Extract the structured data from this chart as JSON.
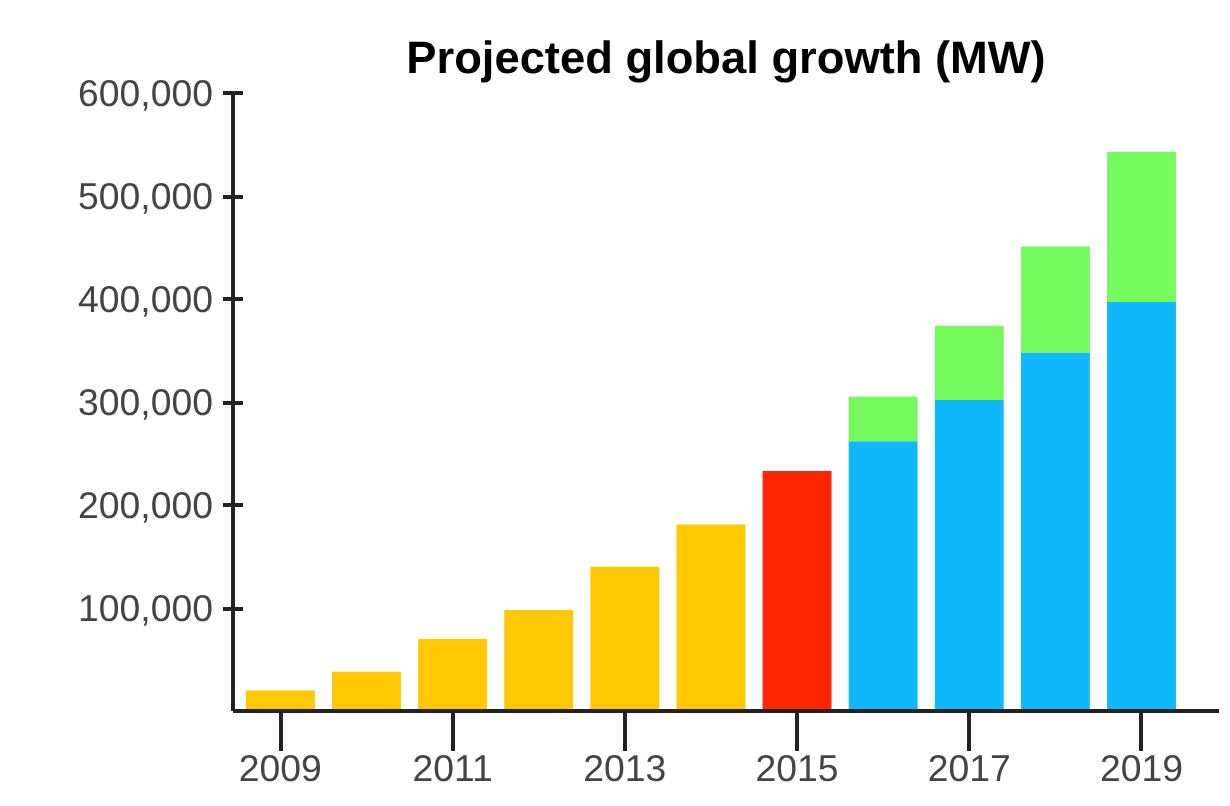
{
  "chart_data": {
    "type": "bar",
    "title": "Projected global growth (MW)",
    "categories": [
      "2009",
      null,
      "2011",
      null,
      "2013",
      null,
      "2015",
      null,
      "2017",
      null,
      "2019"
    ],
    "stacked": true,
    "series": [
      {
        "colors": [
          "#ffc800",
          "#ffc800",
          "#ffc800",
          "#ffc800",
          "#ffc800",
          "#ffc800",
          "#ff2600",
          "#10b8fc",
          "#10b8fc",
          "#10b8fc",
          "#10b8fc"
        ],
        "values": [
          20000,
          38000,
          70000,
          98000,
          140000,
          181000,
          233000,
          262000,
          302000,
          348000,
          397000
        ]
      },
      {
        "color": "#74fa5c",
        "values": [
          null,
          null,
          null,
          null,
          null,
          null,
          null,
          43000,
          72000,
          103000,
          146000
        ]
      }
    ],
    "ylim": [
      0,
      600000
    ],
    "yticks": [
      {
        "value": 100000,
        "label": "100,000"
      },
      {
        "value": 200000,
        "label": "200,000"
      },
      {
        "value": 300000,
        "label": "300,000"
      },
      {
        "value": 400000,
        "label": "400,000"
      },
      {
        "value": 500000,
        "label": "500,000"
      },
      {
        "value": 600000,
        "label": "600,000"
      }
    ],
    "grid": false
  }
}
